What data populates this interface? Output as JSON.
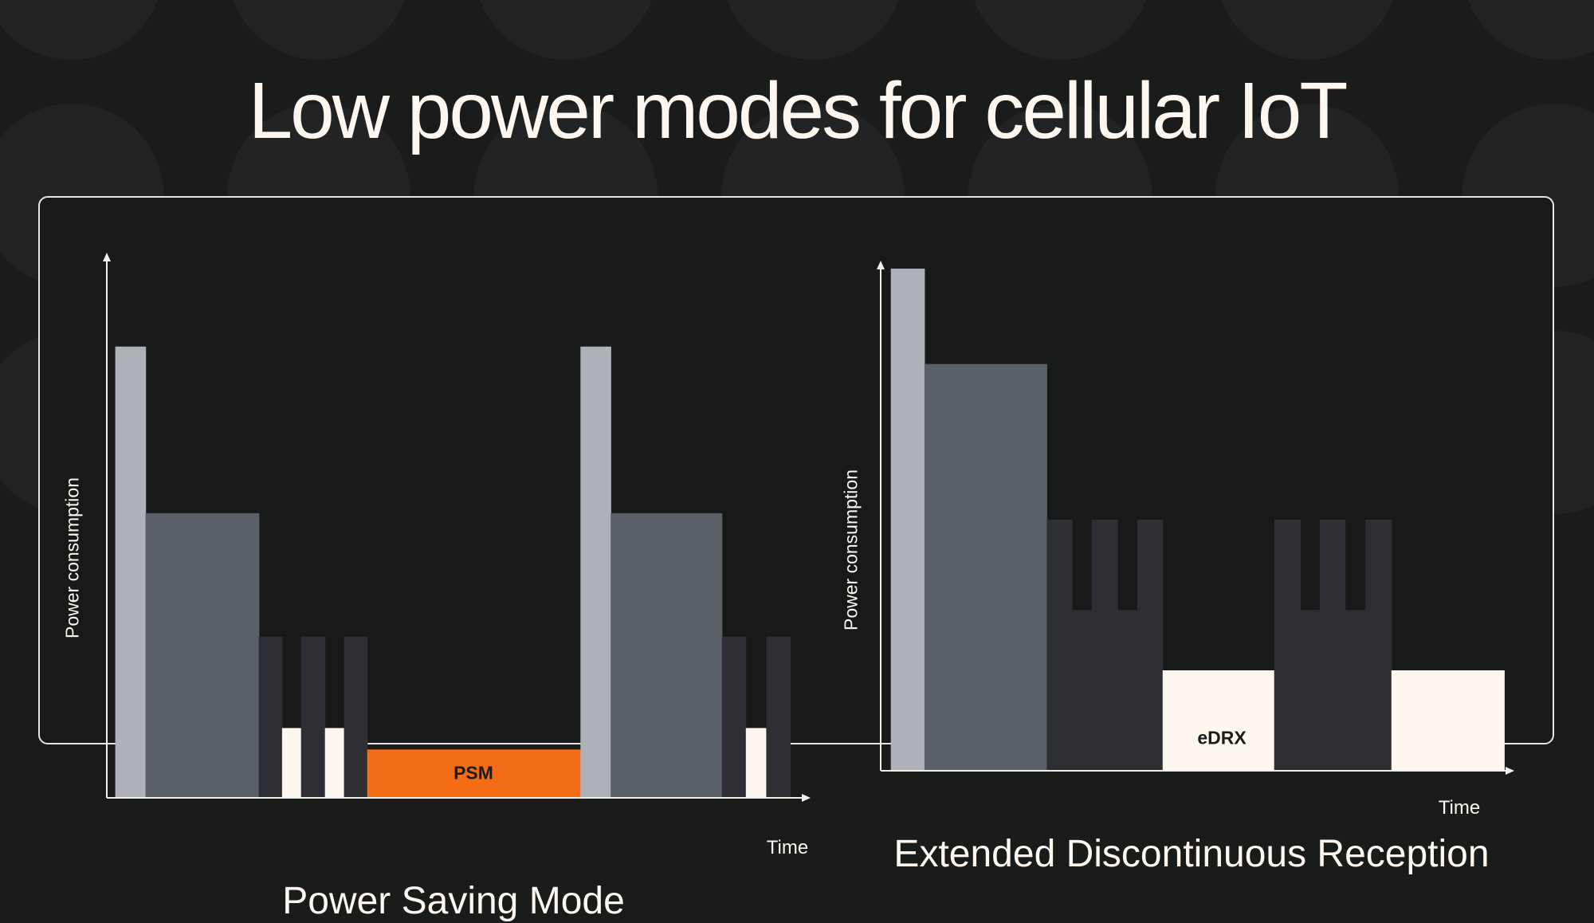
{
  "title": "Low power modes for cellular IoT",
  "colors": {
    "background": "#1a1b1b",
    "pattern": "#222324",
    "panel": "#181a19",
    "connection": "#afb1b9",
    "active": "#5a6068",
    "idle": "#2d2f34",
    "sleep": "#fdf7f0",
    "psm": "#f56c17",
    "axis": "#f2eee8"
  },
  "chart_data": [
    {
      "type": "bar",
      "title": "Power Saving Mode",
      "xlabel": "Time",
      "ylabel": "Power consumption",
      "xlim": [
        0,
        100
      ],
      "ylim": [
        0,
        100
      ],
      "grid": false,
      "highlight_label": "PSM",
      "segments": [
        {
          "t0": 1.2,
          "t1": 5.5,
          "power": 84,
          "state": "connection"
        },
        {
          "t0": 5.5,
          "t1": 21.6,
          "power": 53,
          "state": "active"
        },
        {
          "t0": 21.6,
          "t1": 24.9,
          "power": 30,
          "state": "idle"
        },
        {
          "t0": 24.9,
          "t1": 27.6,
          "power": 13,
          "state": "sleep"
        },
        {
          "t0": 27.6,
          "t1": 31.0,
          "power": 30,
          "state": "idle"
        },
        {
          "t0": 31.0,
          "t1": 33.7,
          "power": 13,
          "state": "sleep"
        },
        {
          "t0": 33.7,
          "t1": 37.0,
          "power": 30,
          "state": "idle"
        },
        {
          "t0": 37.0,
          "t1": 67.3,
          "power": 9,
          "state": "psm"
        },
        {
          "t0": 67.3,
          "t1": 71.6,
          "power": 84,
          "state": "connection"
        },
        {
          "t0": 71.6,
          "t1": 87.4,
          "power": 53,
          "state": "active"
        },
        {
          "t0": 87.4,
          "t1": 90.8,
          "power": 30,
          "state": "idle"
        },
        {
          "t0": 90.8,
          "t1": 93.7,
          "power": 13,
          "state": "sleep"
        },
        {
          "t0": 93.7,
          "t1": 97.1,
          "power": 30,
          "state": "idle"
        }
      ]
    },
    {
      "type": "bar",
      "title": "Extended Discontinuous Reception",
      "xlabel": "Time",
      "ylabel": "Power consumption",
      "xlim": [
        0,
        100
      ],
      "ylim": [
        0,
        100
      ],
      "grid": false,
      "highlight_label": "eDRX",
      "segments": [
        {
          "t0": 1.6,
          "t1": 6.9,
          "power": 100,
          "state": "connection"
        },
        {
          "t0": 6.9,
          "t1": 26.2,
          "power": 81,
          "state": "active"
        },
        {
          "t0": 26.2,
          "t1": 30.2,
          "power": 50,
          "state": "idle"
        },
        {
          "t0": 30.2,
          "t1": 33.3,
          "power": 32,
          "state": "idle"
        },
        {
          "t0": 33.3,
          "t1": 37.4,
          "power": 50,
          "state": "idle"
        },
        {
          "t0": 37.4,
          "t1": 40.5,
          "power": 32,
          "state": "idle"
        },
        {
          "t0": 40.5,
          "t1": 44.5,
          "power": 50,
          "state": "idle"
        },
        {
          "t0": 44.5,
          "t1": 62.1,
          "power": 20,
          "state": "sleep"
        },
        {
          "t0": 62.1,
          "t1": 66.2,
          "power": 50,
          "state": "idle"
        },
        {
          "t0": 66.2,
          "t1": 69.3,
          "power": 32,
          "state": "idle"
        },
        {
          "t0": 69.3,
          "t1": 73.3,
          "power": 50,
          "state": "idle"
        },
        {
          "t0": 73.3,
          "t1": 76.5,
          "power": 32,
          "state": "idle"
        },
        {
          "t0": 76.5,
          "t1": 80.6,
          "power": 50,
          "state": "idle"
        },
        {
          "t0": 80.6,
          "t1": 98.4,
          "power": 20,
          "state": "sleep"
        }
      ]
    }
  ]
}
